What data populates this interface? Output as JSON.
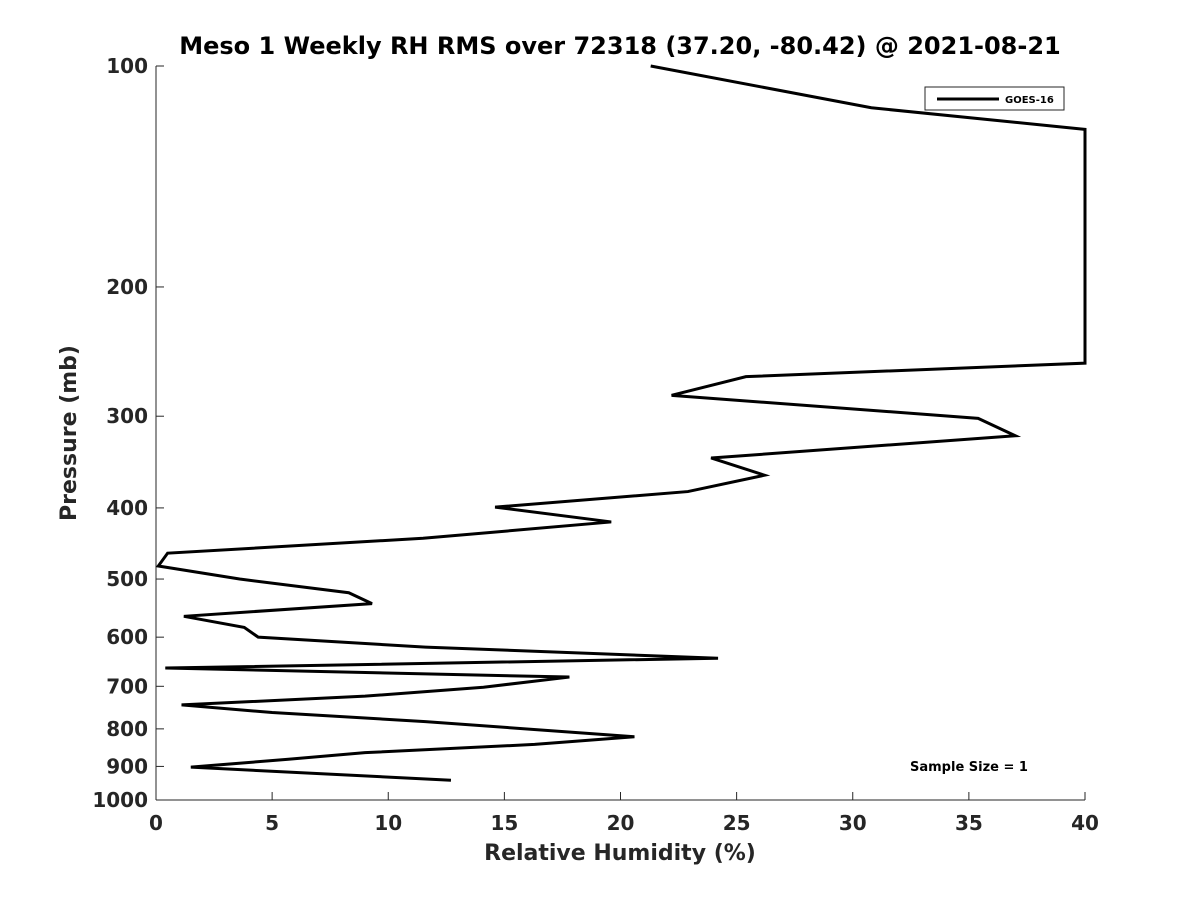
{
  "chart_data": {
    "type": "line",
    "title": "Meso 1 Weekly RH RMS over 72318 (37.20, -80.42) @ 2021-08-21",
    "xlabel": "Relative Humidity (%)",
    "ylabel": "Pressure (mb)",
    "xlim": [
      0,
      40
    ],
    "ylim": [
      100,
      1000
    ],
    "yscale": "log",
    "yreversed": true,
    "grid": false,
    "legend_position": "top-right",
    "annotation": "Sample Size = 1",
    "xticks": [
      "0",
      "5",
      "10",
      "15",
      "20",
      "25",
      "30",
      "35",
      "40"
    ],
    "yticks": [
      "100",
      "200",
      "300",
      "400",
      "500",
      "600",
      "700",
      "800",
      "900",
      "1000"
    ],
    "series": [
      {
        "name": "GOES-16",
        "color": "#000000",
        "points": [
          {
            "x": 21.3,
            "y": 100
          },
          {
            "x": 30.8,
            "y": 114
          },
          {
            "x": 40.0,
            "y": 122
          },
          {
            "x": 40.0,
            "y": 254
          },
          {
            "x": 25.4,
            "y": 265
          },
          {
            "x": 22.2,
            "y": 281
          },
          {
            "x": 35.4,
            "y": 302
          },
          {
            "x": 37.0,
            "y": 319
          },
          {
            "x": 23.9,
            "y": 342
          },
          {
            "x": 26.2,
            "y": 361
          },
          {
            "x": 22.9,
            "y": 380
          },
          {
            "x": 14.6,
            "y": 399
          },
          {
            "x": 19.6,
            "y": 418
          },
          {
            "x": 11.5,
            "y": 440
          },
          {
            "x": 0.5,
            "y": 461
          },
          {
            "x": 0.1,
            "y": 480
          },
          {
            "x": 3.6,
            "y": 500
          },
          {
            "x": 8.3,
            "y": 522
          },
          {
            "x": 9.3,
            "y": 540
          },
          {
            "x": 1.2,
            "y": 562
          },
          {
            "x": 3.8,
            "y": 582
          },
          {
            "x": 4.4,
            "y": 600
          },
          {
            "x": 11.6,
            "y": 619
          },
          {
            "x": 24.2,
            "y": 641
          },
          {
            "x": 0.4,
            "y": 661
          },
          {
            "x": 17.8,
            "y": 680
          },
          {
            "x": 14.1,
            "y": 702
          },
          {
            "x": 9.0,
            "y": 722
          },
          {
            "x": 1.1,
            "y": 742
          },
          {
            "x": 5.0,
            "y": 760
          },
          {
            "x": 11.6,
            "y": 782
          },
          {
            "x": 20.6,
            "y": 820
          },
          {
            "x": 16.3,
            "y": 840
          },
          {
            "x": 9.0,
            "y": 862
          },
          {
            "x": 5.7,
            "y": 880
          },
          {
            "x": 1.5,
            "y": 902
          },
          {
            "x": 12.7,
            "y": 940
          }
        ]
      }
    ]
  }
}
